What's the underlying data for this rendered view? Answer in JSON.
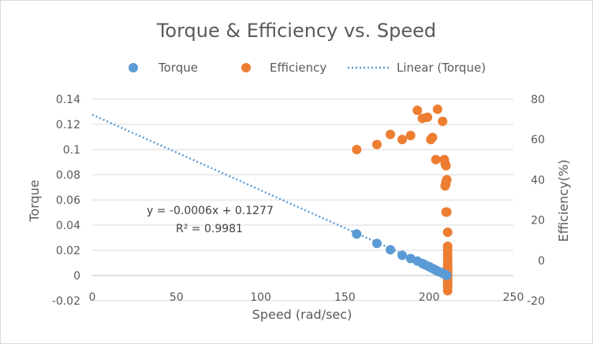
{
  "chart_data": {
    "type": "scatter",
    "title": "Torque & Efficiency vs. Speed",
    "xlabel": "Speed  (rad/sec)",
    "ylabel": "Torque",
    "y2label": "Efficiency(%)",
    "xlim": [
      0,
      250
    ],
    "ylim": [
      -0.02,
      0.14
    ],
    "y2lim": [
      -20,
      80
    ],
    "xticks": [
      "0",
      "50",
      "100",
      "150",
      "200",
      "250"
    ],
    "yticks": [
      "-0.02",
      "0",
      "0.02",
      "0.04",
      "0.06",
      "0.08",
      "0.1",
      "0.12",
      "0.14"
    ],
    "y2ticks": [
      "-20",
      "0",
      "20",
      "40",
      "60",
      "80"
    ],
    "grid": true,
    "legend_position": "top",
    "series": [
      {
        "name": "Torque",
        "axis": "left",
        "color": "#5b9bd5",
        "x": [
          157,
          169,
          177,
          184,
          189,
          193,
          196,
          198,
          200,
          201,
          202,
          203,
          204,
          205,
          206,
          207,
          208,
          209,
          210,
          210.5
        ],
        "y": [
          0.033,
          0.0255,
          0.0205,
          0.016,
          0.0135,
          0.0115,
          0.0095,
          0.0082,
          0.007,
          0.0063,
          0.0056,
          0.0049,
          0.0042,
          0.0035,
          0.003,
          0.0025,
          0.0018,
          0.0012,
          0.0006,
          0.0001
        ]
      },
      {
        "name": "Efficiency",
        "axis": "right",
        "color": "#ed7d31",
        "x": [
          157,
          169,
          177,
          184,
          189,
          193,
          196,
          199,
          201,
          202,
          204,
          205,
          208,
          209,
          209.5,
          210,
          210,
          209.5,
          210.5,
          210,
          210,
          210.5,
          211,
          211,
          211,
          211,
          211,
          211,
          211,
          211,
          211,
          211,
          211,
          211,
          211,
          211,
          211,
          211,
          211,
          211,
          211
        ],
        "y": [
          55,
          57.5,
          62.5,
          60,
          62,
          74.5,
          70.5,
          71,
          60,
          61,
          50,
          75,
          69,
          50,
          48,
          47,
          39,
          37,
          40,
          38,
          24,
          24,
          14,
          7,
          5,
          3,
          1,
          -1,
          -2,
          -3,
          -4,
          -5,
          -6,
          -7,
          -8,
          -9,
          -10,
          -11,
          -12,
          -13,
          -15
        ]
      },
      {
        "name": "Linear (Torque)",
        "axis": "left",
        "color": "#5b9bd5",
        "style": "dotted",
        "trendline": {
          "slope": -0.0006,
          "intercept": 0.1277
        }
      }
    ],
    "annotations": [
      "y = -0.0006x + 0.1277",
      "R² = 0.9981"
    ]
  }
}
